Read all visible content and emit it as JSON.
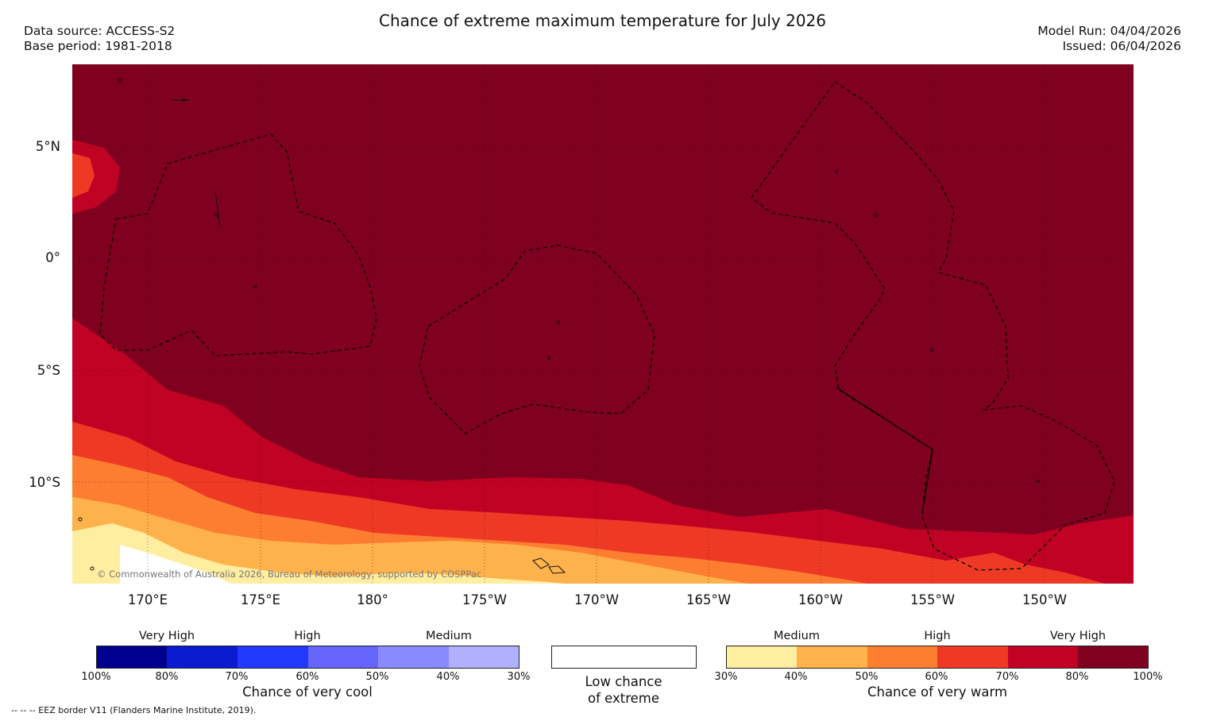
{
  "header": {
    "title": "Chance of extreme maximum temperature for July 2026",
    "data_source": "Data source: ACCESS-S2",
    "base_period": "Base period: 1981-2018",
    "model_run": "Model Run: 04/04/2026",
    "issued": "Issued: 06/04/2026"
  },
  "map": {
    "lat_labels": [
      "5°N",
      "0°",
      "5°S",
      "10°S"
    ],
    "lon_labels": [
      "170°E",
      "175°E",
      "180°",
      "175°W",
      "170°W",
      "165°W",
      "160°W",
      "155°W",
      "150°W"
    ],
    "copyright": "© Commonwealth of Australia 2026, Bureau of Meteorology, supported by COSPPac"
  },
  "legend": {
    "cool": {
      "categories": [
        "Very High",
        "High",
        "Medium"
      ],
      "ticks": [
        "100%",
        "80%",
        "70%",
        "60%",
        "50%",
        "40%",
        "30%"
      ],
      "caption": "Chance of very cool",
      "colors": [
        "#00008f",
        "#0a1bd0",
        "#2338ff",
        "#6666ff",
        "#8a8aff",
        "#b0b0ff"
      ]
    },
    "neutral": {
      "caption_line1": "Low chance",
      "caption_line2": "of extreme"
    },
    "warm": {
      "categories": [
        "Medium",
        "High",
        "Very High"
      ],
      "ticks": [
        "30%",
        "40%",
        "50%",
        "60%",
        "70%",
        "80%",
        "100%"
      ],
      "caption": "Chance of very warm",
      "colors": [
        "#ffeda0",
        "#feb24c",
        "#fd7e31",
        "#ee3a25",
        "#c00224",
        "#800020"
      ]
    }
  },
  "footnote": "--  --  -- EEZ border V11 (Flanders Marine Institute, 2019)."
}
